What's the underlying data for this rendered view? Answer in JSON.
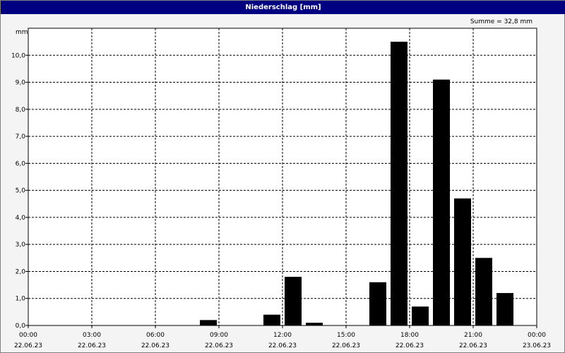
{
  "chart_data": {
    "type": "bar",
    "title": "Niederschlag [mm]",
    "ylabel": "mm",
    "annotation": "Summe = 32,8 mm",
    "ylim": [
      0,
      11
    ],
    "yticks": [
      "0,0",
      "1,0",
      "2,0",
      "3,0",
      "4,0",
      "5,0",
      "6,0",
      "7,0",
      "8,0",
      "9,0",
      "10,0"
    ],
    "xlim_hours": [
      0,
      24
    ],
    "xticks": [
      {
        "h": 0,
        "time": "00:00",
        "date": "22.06.23"
      },
      {
        "h": 3,
        "time": "03:00",
        "date": "22.06.23"
      },
      {
        "h": 6,
        "time": "06:00",
        "date": "22.06.23"
      },
      {
        "h": 9,
        "time": "09:00",
        "date": "22.06.23"
      },
      {
        "h": 12,
        "time": "12:00",
        "date": "22.06.23"
      },
      {
        "h": 15,
        "time": "15:00",
        "date": "22.06.23"
      },
      {
        "h": 18,
        "time": "18:00",
        "date": "22.06.23"
      },
      {
        "h": 21,
        "time": "21:00",
        "date": "22.06.23"
      },
      {
        "h": 24,
        "time": "00:00",
        "date": "23.06.23"
      }
    ],
    "grid": true,
    "bars": [
      {
        "hour": "08:00",
        "value": 0.2
      },
      {
        "hour": "11:00",
        "value": 0.4
      },
      {
        "hour": "12:00",
        "value": 1.8
      },
      {
        "hour": "13:00",
        "value": 0.1
      },
      {
        "hour": "16:00",
        "value": 1.6
      },
      {
        "hour": "17:00",
        "value": 10.5
      },
      {
        "hour": "18:00",
        "value": 0.7
      },
      {
        "hour": "19:00",
        "value": 9.1
      },
      {
        "hour": "20:00",
        "value": 4.7
      },
      {
        "hour": "21:00",
        "value": 2.5
      },
      {
        "hour": "22:00",
        "value": 1.2
      }
    ],
    "bar_color": "#000000"
  }
}
